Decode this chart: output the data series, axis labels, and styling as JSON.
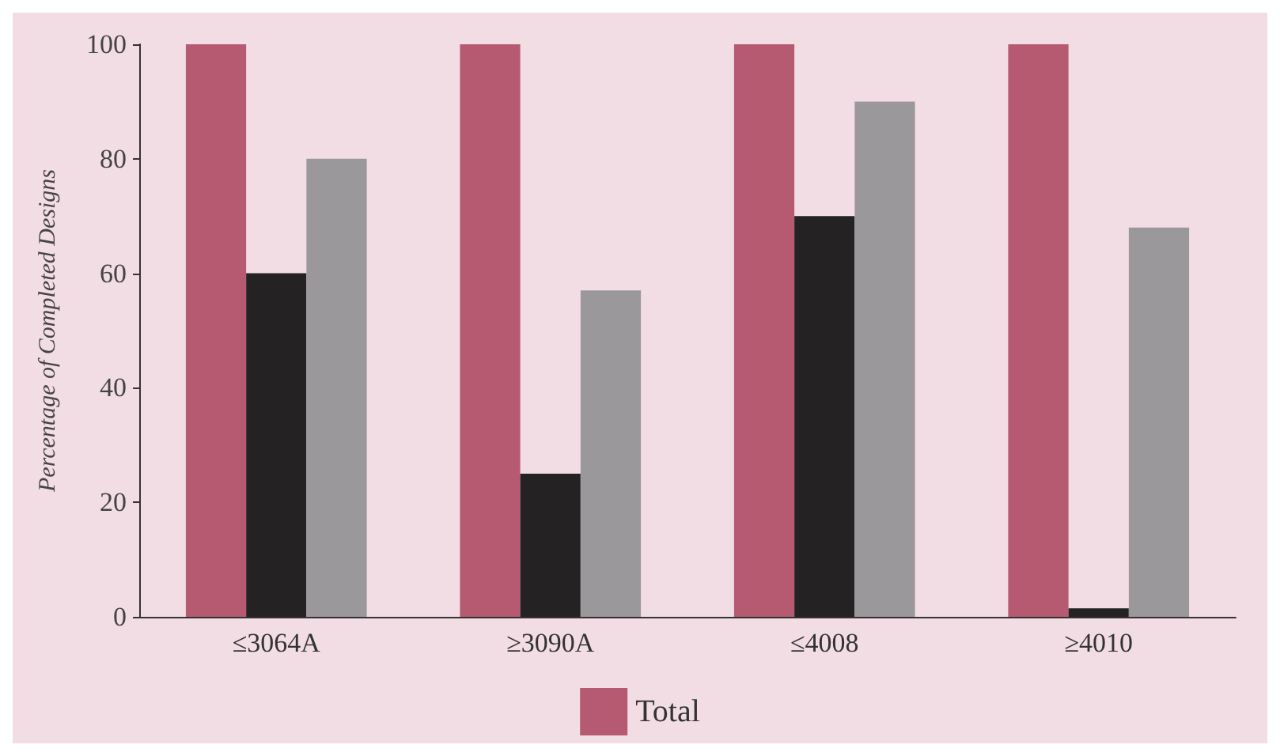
{
  "chart_data": {
    "type": "bar",
    "ylabel": "Percentage of Completed Designs",
    "categories": [
      "≤3064A",
      "≥3090A",
      "≤4008",
      "≥4010"
    ],
    "series": [
      {
        "name": "Total",
        "color": "#b65a72",
        "values": [
          100,
          100,
          100,
          100
        ]
      },
      {
        "color": "#252224",
        "values": [
          60,
          25,
          70,
          1.5
        ]
      },
      {
        "color": "#9b989c",
        "values": [
          80,
          57,
          90,
          68
        ]
      }
    ],
    "ylim": [
      0,
      100
    ],
    "yticks": [
      0,
      20,
      40,
      60,
      80,
      100
    ],
    "grid": false,
    "legend": "bottom"
  }
}
